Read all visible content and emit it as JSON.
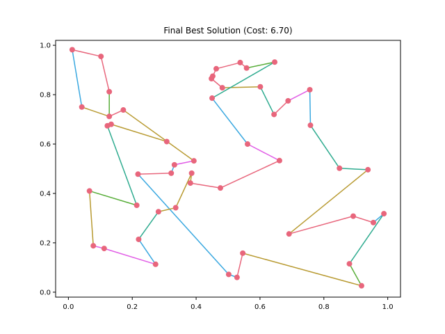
{
  "chart_data": {
    "type": "line",
    "title": "Final Best Solution (Cost: 6.70)",
    "xlabel": "",
    "ylabel": "",
    "xlim": [
      -0.04,
      1.04
    ],
    "ylim": [
      -0.02,
      1.02
    ],
    "x_ticks": [
      0.0,
      0.2,
      0.4,
      0.6,
      0.8,
      1.0
    ],
    "x_tick_labels": [
      "0.0",
      "0.2",
      "0.4",
      "0.6",
      "0.8",
      "1.0"
    ],
    "y_ticks": [
      0.0,
      0.2,
      0.4,
      0.6,
      0.8,
      1.0
    ],
    "y_tick_labels": [
      "0.0",
      "0.2",
      "0.4",
      "0.6",
      "0.8",
      "1.0"
    ],
    "grid": false,
    "legend": "none",
    "marker_color": "#e8667c",
    "segment_colors": [
      "#e8667c",
      "#3aa8e0",
      "#2eab8f",
      "#b89a31",
      "#e15ee6",
      "#57ad38"
    ],
    "route": [
      [
        0.012,
        0.982
      ],
      [
        0.042,
        0.75
      ],
      [
        0.128,
        0.712
      ],
      [
        0.172,
        0.738
      ],
      [
        0.393,
        0.532
      ],
      [
        0.332,
        0.516
      ],
      [
        0.322,
        0.482
      ],
      [
        0.218,
        0.478
      ],
      [
        0.502,
        0.072
      ],
      [
        0.528,
        0.06
      ],
      [
        0.546,
        0.158
      ],
      [
        0.918,
        0.026
      ],
      [
        0.88,
        0.115
      ],
      [
        0.988,
        0.318
      ],
      [
        0.955,
        0.282
      ],
      [
        0.892,
        0.308
      ],
      [
        0.691,
        0.236
      ],
      [
        0.938,
        0.496
      ],
      [
        0.849,
        0.502
      ],
      [
        0.758,
        0.676
      ],
      [
        0.756,
        0.82
      ],
      [
        0.688,
        0.775
      ],
      [
        0.644,
        0.72
      ],
      [
        0.601,
        0.832
      ],
      [
        0.482,
        0.828
      ],
      [
        0.448,
        0.865
      ],
      [
        0.452,
        0.875
      ],
      [
        0.463,
        0.905
      ],
      [
        0.538,
        0.93
      ],
      [
        0.558,
        0.908
      ],
      [
        0.646,
        0.932
      ],
      [
        0.45,
        0.786
      ],
      [
        0.561,
        0.6
      ],
      [
        0.661,
        0.533
      ],
      [
        0.476,
        0.422
      ],
      [
        0.382,
        0.442
      ],
      [
        0.386,
        0.482
      ],
      [
        0.336,
        0.342
      ],
      [
        0.282,
        0.326
      ],
      [
        0.22,
        0.214
      ],
      [
        0.273,
        0.113
      ],
      [
        0.112,
        0.177
      ],
      [
        0.078,
        0.188
      ],
      [
        0.066,
        0.41
      ],
      [
        0.214,
        0.352
      ],
      [
        0.122,
        0.674
      ],
      [
        0.134,
        0.68
      ],
      [
        0.308,
        0.61
      ]
    ],
    "segment_color_index": [
      1,
      3,
      0,
      3,
      4,
      1,
      0,
      1,
      1,
      0,
      3,
      5,
      2,
      1,
      0,
      0,
      3,
      2,
      2,
      1,
      4,
      0,
      2,
      3,
      0,
      0,
      0,
      0,
      0,
      5,
      2,
      1,
      4,
      0,
      0,
      3,
      3,
      3,
      2,
      1,
      4,
      4,
      3,
      5,
      2,
      0,
      3
    ],
    "extra_segments": [
      {
        "from": [
          0.012,
          0.982
        ],
        "to": [
          0.102,
          0.955
        ],
        "color": "#e8667c"
      },
      {
        "from": [
          0.102,
          0.955
        ],
        "to": [
          0.128,
          0.812
        ],
        "color": "#e8667c"
      },
      {
        "from": [
          0.128,
          0.812
        ],
        "to": [
          0.128,
          0.712
        ],
        "color": "#57ad38"
      }
    ],
    "extra_points": [
      [
        0.102,
        0.955
      ],
      [
        0.128,
        0.812
      ]
    ]
  }
}
